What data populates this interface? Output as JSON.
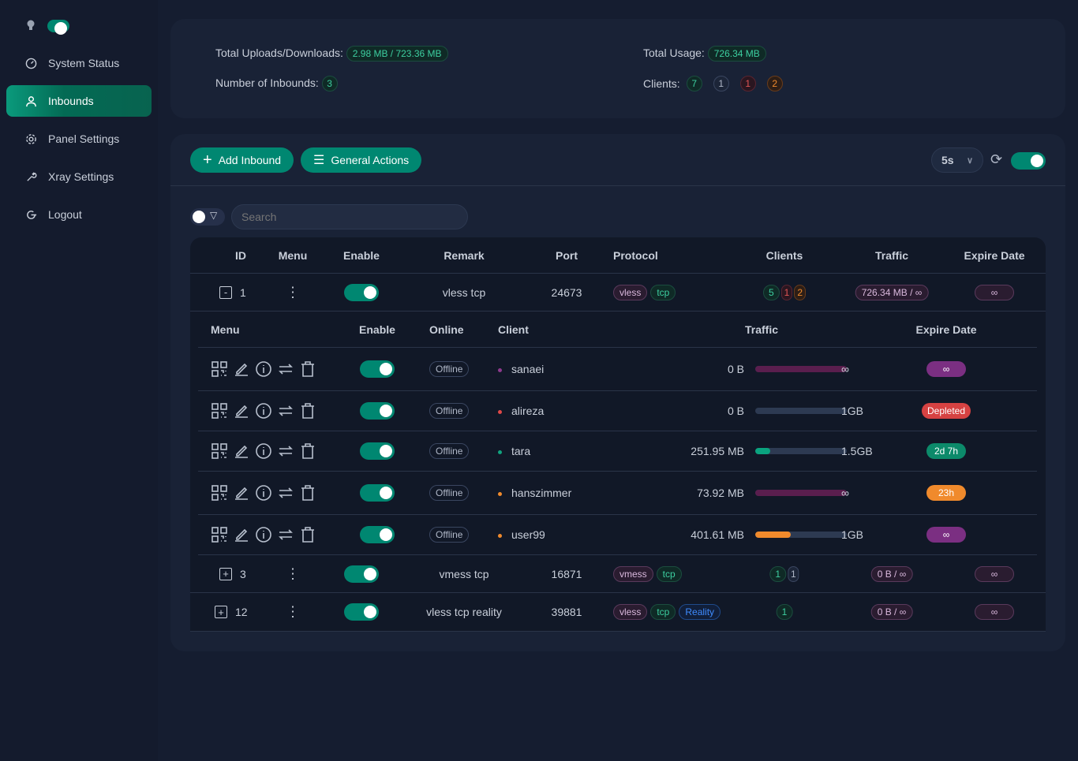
{
  "sidebar": {
    "items": [
      {
        "label": "System Status",
        "icon": "dashboard-icon"
      },
      {
        "label": "Inbounds",
        "icon": "user-icon",
        "active": true
      },
      {
        "label": "Panel Settings",
        "icon": "gear-icon"
      },
      {
        "label": "Xray Settings",
        "icon": "wrench-icon"
      },
      {
        "label": "Logout",
        "icon": "logout-icon"
      }
    ],
    "theme_toggle": true
  },
  "stats": {
    "uploads_label": "Total Uploads/Downloads:",
    "uploads_value": "2.98 MB / 723.36 MB",
    "usage_label": "Total Usage:",
    "usage_value": "726.34 MB",
    "inbounds_label": "Number of Inbounds:",
    "inbounds_value": "3",
    "clients_label": "Clients:",
    "clients": [
      "7",
      "1",
      "1",
      "2"
    ]
  },
  "toolbar": {
    "add_label": "Add Inbound",
    "general_label": "General Actions",
    "refresh_interval": "5s",
    "auto_refresh": true,
    "search_placeholder": "Search"
  },
  "table": {
    "headers": [
      "ID",
      "Menu",
      "Enable",
      "Remark",
      "Port",
      "Protocol",
      "Clients",
      "Traffic",
      "Expire Date"
    ],
    "rows": [
      {
        "id": "1",
        "expanded": true,
        "expand": "-",
        "remark": "vless tcp",
        "port": "24673",
        "protocol": [
          "vless",
          "tcp"
        ],
        "clients": [
          "5",
          "1",
          "2"
        ],
        "traffic": "726.34 MB / ∞",
        "expire": "∞"
      },
      {
        "id": "3",
        "expand": "+",
        "remark": "vmess tcp",
        "port": "16871",
        "protocol": [
          "vmess",
          "tcp"
        ],
        "clients": [
          "1",
          "1"
        ],
        "traffic": "0 B / ∞",
        "expire": "∞"
      },
      {
        "id": "12",
        "expand": "+",
        "remark": "vless tcp reality",
        "port": "39881",
        "protocol": [
          "vless",
          "tcp",
          "Reality"
        ],
        "clients": [
          "1"
        ],
        "traffic": "0 B / ∞",
        "expire": "∞"
      }
    ]
  },
  "clients_table": {
    "headers": [
      "Menu",
      "Enable",
      "Online",
      "Client",
      "Traffic",
      "Expire Date"
    ],
    "rows": [
      {
        "online": "Offline",
        "name": "sanaei",
        "used": "0 B",
        "total": "∞",
        "percent": 100,
        "bar_color": "#5a1e4e",
        "dot": "#8e3a8e",
        "expire": "∞",
        "expire_color": "#7b2f82"
      },
      {
        "online": "Offline",
        "name": "alireza",
        "used": "0 B",
        "total": "1GB",
        "percent": 0,
        "bar_color": "#2d3a52",
        "dot": "#e04848",
        "expire": "Depleted",
        "expire_color": "#d64242"
      },
      {
        "online": "Offline",
        "name": "tara",
        "used": "251.95 MB",
        "total": "1.5GB",
        "percent": 16,
        "bar_color": "#0aa37f",
        "dot": "#11a37f",
        "expire": "2d 7h",
        "expire_color": "#0c8a6a"
      },
      {
        "online": "Offline",
        "name": "hanszimmer",
        "used": "73.92 MB",
        "total": "∞",
        "percent": 100,
        "bar_color": "#5a1e4e",
        "dot": "#f08a2c",
        "expire": "23h",
        "expire_color": "#f08a2c"
      },
      {
        "online": "Offline",
        "name": "user99",
        "used": "401.61 MB",
        "total": "1GB",
        "percent": 39,
        "bar_color": "#f08a2c",
        "dot": "#f08a2c",
        "expire": "∞",
        "expire_color": "#7b2f82"
      }
    ]
  }
}
